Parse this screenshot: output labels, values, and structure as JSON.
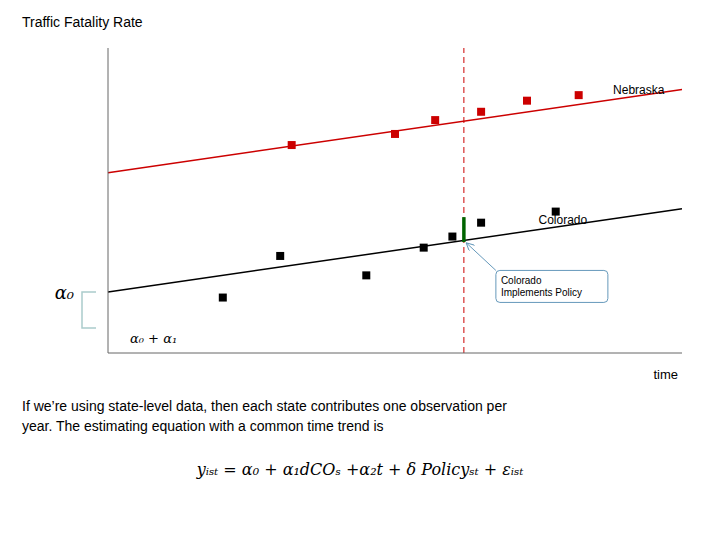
{
  "chart_data": {
    "type": "line",
    "title": "Traffic Fatality Rate",
    "x_label": "time",
    "background_color": "#ffffff",
    "xlim": [
      0,
      10
    ],
    "ylim": [
      0,
      11
    ],
    "tick_labels": false,
    "grid": false,
    "series": [
      {
        "name": "Nebraska",
        "type": "line",
        "color": "#cc0000",
        "x": [
          0,
          10
        ],
        "values": [
          6.5,
          9.5
        ]
      },
      {
        "name": "Colorado",
        "type": "line",
        "color": "#000000",
        "x": [
          0,
          10
        ],
        "values": [
          2.2,
          5.2
        ]
      },
      {
        "type": "scatter",
        "marker": "square",
        "color": "#cc0000",
        "x": [
          3.2,
          5.0,
          5.7,
          6.5,
          7.3,
          8.2
        ],
        "values": [
          7.5,
          7.9,
          8.4,
          8.7,
          9.1,
          9.3
        ]
      },
      {
        "type": "scatter",
        "marker": "square",
        "color": "#000000",
        "x": [
          2.0,
          3.0,
          4.5,
          5.5,
          6.0
        ],
        "values": [
          2.0,
          3.5,
          2.8,
          3.8,
          4.2
        ]
      },
      {
        "type": "scatter",
        "marker": "square",
        "color": "#000000",
        "x": [
          6.5,
          7.8
        ],
        "values": [
          4.7,
          5.1
        ]
      }
    ],
    "vertical_line": {
      "x": 6.2,
      "color": "#cc0000",
      "line_style": "dashed",
      "label": "Colorado\nImplements Policy",
      "arrow_to": "Colorado"
    },
    "segment": {
      "x": 6.2,
      "y": [
        4.0,
        4.9
      ],
      "color": "#006400"
    },
    "bracket": {
      "labels": [
        "α₀",
        "α₀ + α₁"
      ],
      "values": [
        2.2,
        0.9
      ]
    },
    "text_lines": [
      "If we’re using state-level data, then each state contributes one observation per",
      "year.  The estimating equation with a common time trend is"
    ],
    "equation": "yᵢₛₜ = α₀ + α₁dCOₛ +α₂t + δ Policyₛₜ + εᵢₛₜ"
  }
}
